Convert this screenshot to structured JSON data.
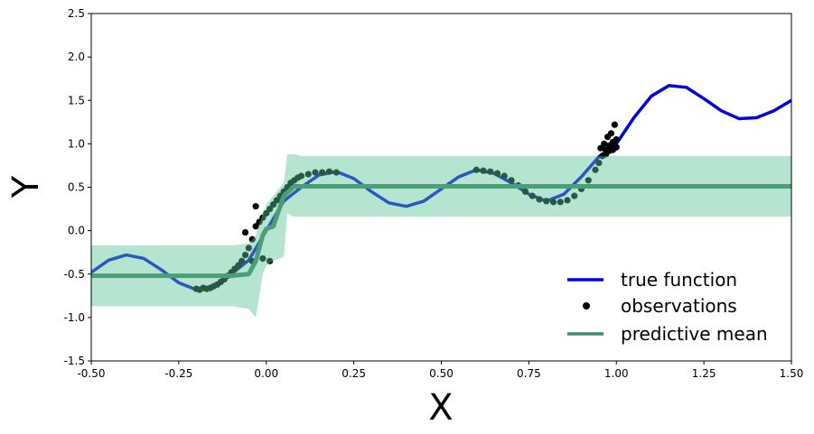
{
  "chart_data": {
    "type": "line",
    "xlabel": "X",
    "ylabel": "Y",
    "xlim": [
      -0.5,
      1.5
    ],
    "ylim": [
      -1.5,
      2.5
    ],
    "xticks": [
      "-0.50",
      "-0.25",
      "0.00",
      "0.25",
      "0.50",
      "0.75",
      "1.00",
      "1.25",
      "1.50"
    ],
    "yticks": [
      "-1.5",
      "-1.0",
      "-0.5",
      "0.0",
      "0.5",
      "1.0",
      "1.5",
      "2.0",
      "2.5"
    ],
    "grid": false,
    "legend": {
      "placement": "lower-right",
      "entries": [
        "true function",
        "observations",
        "predictive mean"
      ]
    },
    "colors": {
      "true_function": "#0000e0",
      "true_function_under_band": "#4a72d4",
      "observations": "#000000",
      "observations_under_band": "#4f7a63",
      "predictive_mean": "#4a9e78",
      "uncertainty_band": "#b3e0cc"
    },
    "series": [
      {
        "name": "true function",
        "x": [
          -0.5,
          -0.45,
          -0.4,
          -0.35,
          -0.3,
          -0.25,
          -0.2,
          -0.15,
          -0.1,
          -0.05,
          0.0,
          0.05,
          0.1,
          0.15,
          0.2,
          0.25,
          0.3,
          0.35,
          0.4,
          0.45,
          0.5,
          0.55,
          0.6,
          0.65,
          0.7,
          0.75,
          0.8,
          0.85,
          0.9,
          0.95,
          1.0,
          1.05,
          1.1,
          1.15,
          1.2,
          1.25,
          1.3,
          1.35,
          1.4,
          1.45,
          1.5
        ],
        "y": [
          -0.48,
          -0.34,
          -0.28,
          -0.32,
          -0.45,
          -0.6,
          -0.68,
          -0.64,
          -0.5,
          -0.34,
          0.0,
          0.34,
          0.5,
          0.64,
          0.68,
          0.6,
          0.45,
          0.32,
          0.28,
          0.34,
          0.48,
          0.62,
          0.7,
          0.66,
          0.55,
          0.42,
          0.34,
          0.42,
          0.62,
          0.85,
          1.0,
          1.3,
          1.55,
          1.67,
          1.65,
          1.52,
          1.38,
          1.29,
          1.3,
          1.38,
          1.5
        ]
      },
      {
        "name": "predictive mean",
        "x": [
          -0.5,
          -0.3,
          -0.1,
          -0.05,
          -0.03,
          -0.01,
          0.0,
          0.02,
          0.05,
          0.08,
          0.1,
          0.2,
          0.5,
          1.0,
          1.5
        ],
        "y": [
          -0.52,
          -0.52,
          -0.52,
          -0.5,
          -0.35,
          -0.05,
          0.02,
          0.05,
          0.4,
          0.51,
          0.51,
          0.51,
          0.51,
          0.51,
          0.51
        ]
      }
    ],
    "uncertainty_band": {
      "x": [
        -0.5,
        -0.1,
        -0.05,
        -0.03,
        -0.01,
        0.0,
        0.02,
        0.05,
        0.06,
        0.08,
        0.1,
        0.5,
        1.0,
        1.5
      ],
      "upper": [
        -0.17,
        -0.17,
        -0.15,
        -0.05,
        0.2,
        0.3,
        0.4,
        0.55,
        0.88,
        0.88,
        0.86,
        0.86,
        0.86,
        0.86
      ],
      "lower": [
        -0.87,
        -0.87,
        -0.9,
        -1.0,
        -0.5,
        -0.4,
        -0.35,
        -0.3,
        0.2,
        0.16,
        0.16,
        0.16,
        0.16,
        0.16
      ]
    },
    "observations": [
      {
        "x": -0.2,
        "y": -0.67
      },
      {
        "x": -0.19,
        "y": -0.68
      },
      {
        "x": -0.18,
        "y": -0.66
      },
      {
        "x": -0.17,
        "y": -0.67
      },
      {
        "x": -0.16,
        "y": -0.66
      },
      {
        "x": -0.15,
        "y": -0.64
      },
      {
        "x": -0.14,
        "y": -0.62
      },
      {
        "x": -0.13,
        "y": -0.59
      },
      {
        "x": -0.12,
        "y": -0.56
      },
      {
        "x": -0.11,
        "y": -0.52
      },
      {
        "x": -0.1,
        "y": -0.48
      },
      {
        "x": -0.09,
        "y": -0.44
      },
      {
        "x": -0.08,
        "y": -0.4
      },
      {
        "x": -0.07,
        "y": -0.35
      },
      {
        "x": -0.06,
        "y": -0.28
      },
      {
        "x": -0.05,
        "y": -0.2
      },
      {
        "x": -0.04,
        "y": -0.1
      },
      {
        "x": -0.03,
        "y": 0.05
      },
      {
        "x": -0.02,
        "y": 0.1
      },
      {
        "x": -0.01,
        "y": 0.15
      },
      {
        "x": 0.0,
        "y": 0.2
      },
      {
        "x": 0.01,
        "y": 0.25
      },
      {
        "x": 0.02,
        "y": 0.3
      },
      {
        "x": 0.03,
        "y": 0.35
      },
      {
        "x": 0.04,
        "y": 0.4
      },
      {
        "x": 0.05,
        "y": 0.45
      },
      {
        "x": 0.06,
        "y": 0.5
      },
      {
        "x": 0.07,
        "y": 0.55
      },
      {
        "x": 0.08,
        "y": 0.58
      },
      {
        "x": 0.09,
        "y": 0.61
      },
      {
        "x": 0.1,
        "y": 0.63
      },
      {
        "x": 0.12,
        "y": 0.65
      },
      {
        "x": 0.14,
        "y": 0.67
      },
      {
        "x": 0.16,
        "y": 0.67
      },
      {
        "x": 0.18,
        "y": 0.68
      },
      {
        "x": 0.2,
        "y": 0.67
      },
      {
        "x": -0.06,
        "y": -0.02
      },
      {
        "x": -0.03,
        "y": 0.28
      },
      {
        "x": -0.01,
        "y": -0.32
      },
      {
        "x": 0.01,
        "y": -0.35
      },
      {
        "x": -0.04,
        "y": -0.35
      },
      {
        "x": 0.6,
        "y": 0.7
      },
      {
        "x": 0.62,
        "y": 0.69
      },
      {
        "x": 0.64,
        "y": 0.68
      },
      {
        "x": 0.66,
        "y": 0.66
      },
      {
        "x": 0.68,
        "y": 0.63
      },
      {
        "x": 0.7,
        "y": 0.58
      },
      {
        "x": 0.72,
        "y": 0.52
      },
      {
        "x": 0.74,
        "y": 0.45
      },
      {
        "x": 0.76,
        "y": 0.4
      },
      {
        "x": 0.78,
        "y": 0.36
      },
      {
        "x": 0.8,
        "y": 0.34
      },
      {
        "x": 0.82,
        "y": 0.33
      },
      {
        "x": 0.84,
        "y": 0.33
      },
      {
        "x": 0.86,
        "y": 0.35
      },
      {
        "x": 0.88,
        "y": 0.4
      },
      {
        "x": 0.9,
        "y": 0.48
      },
      {
        "x": 0.92,
        "y": 0.58
      },
      {
        "x": 0.94,
        "y": 0.7
      },
      {
        "x": 0.95,
        "y": 0.78
      },
      {
        "x": 0.96,
        "y": 0.86
      },
      {
        "x": 0.97,
        "y": 0.93
      },
      {
        "x": 0.98,
        "y": 0.98
      },
      {
        "x": 0.99,
        "y": 1.02
      },
      {
        "x": 1.0,
        "y": 1.05
      },
      {
        "x": 0.955,
        "y": 0.95
      },
      {
        "x": 0.965,
        "y": 1.0
      },
      {
        "x": 0.975,
        "y": 1.08
      },
      {
        "x": 0.985,
        "y": 1.12
      },
      {
        "x": 0.995,
        "y": 1.22
      },
      {
        "x": 0.99,
        "y": 0.93
      },
      {
        "x": 0.97,
        "y": 0.88
      },
      {
        "x": 0.98,
        "y": 0.92
      },
      {
        "x": 1.0,
        "y": 0.96
      }
    ]
  }
}
